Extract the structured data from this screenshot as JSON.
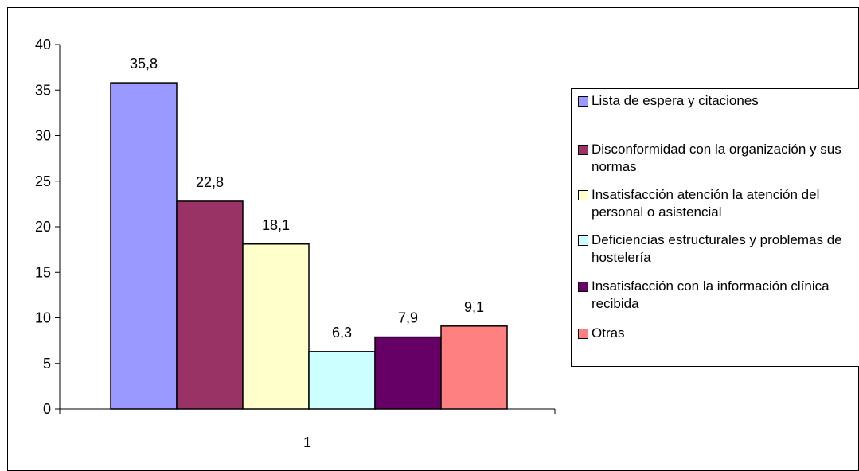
{
  "chart_data": {
    "type": "bar",
    "categories": [
      "1"
    ],
    "series": [
      {
        "name": "Lista de espera y citaciones",
        "values": [
          35.8
        ],
        "label": "35,8",
        "color": "#9999ff"
      },
      {
        "name": "Disconformidad con la organización y sus normas",
        "values": [
          22.8
        ],
        "label": "22,8",
        "color": "#993366"
      },
      {
        "name": "Insatisfacción atención la atención del personal o asistencial",
        "values": [
          18.1
        ],
        "label": "18,1",
        "color": "#ffffcc"
      },
      {
        "name": "Deficiencias estructurales y problemas de hostelería",
        "values": [
          6.3
        ],
        "label": "6,3",
        "color": "#ccffff"
      },
      {
        "name": "Insatisfacción con la información clínica recibida",
        "values": [
          7.9
        ],
        "label": "7,9",
        "color": "#660066"
      },
      {
        "name": "Otras",
        "values": [
          9.1
        ],
        "label": "9,1",
        "color": "#ff8080"
      }
    ],
    "ylim": [
      0,
      40
    ],
    "yticks": [
      0,
      5,
      10,
      15,
      20,
      25,
      30,
      35,
      40
    ],
    "xlabel": "",
    "ylabel": "",
    "grid": false,
    "legend": "right"
  }
}
